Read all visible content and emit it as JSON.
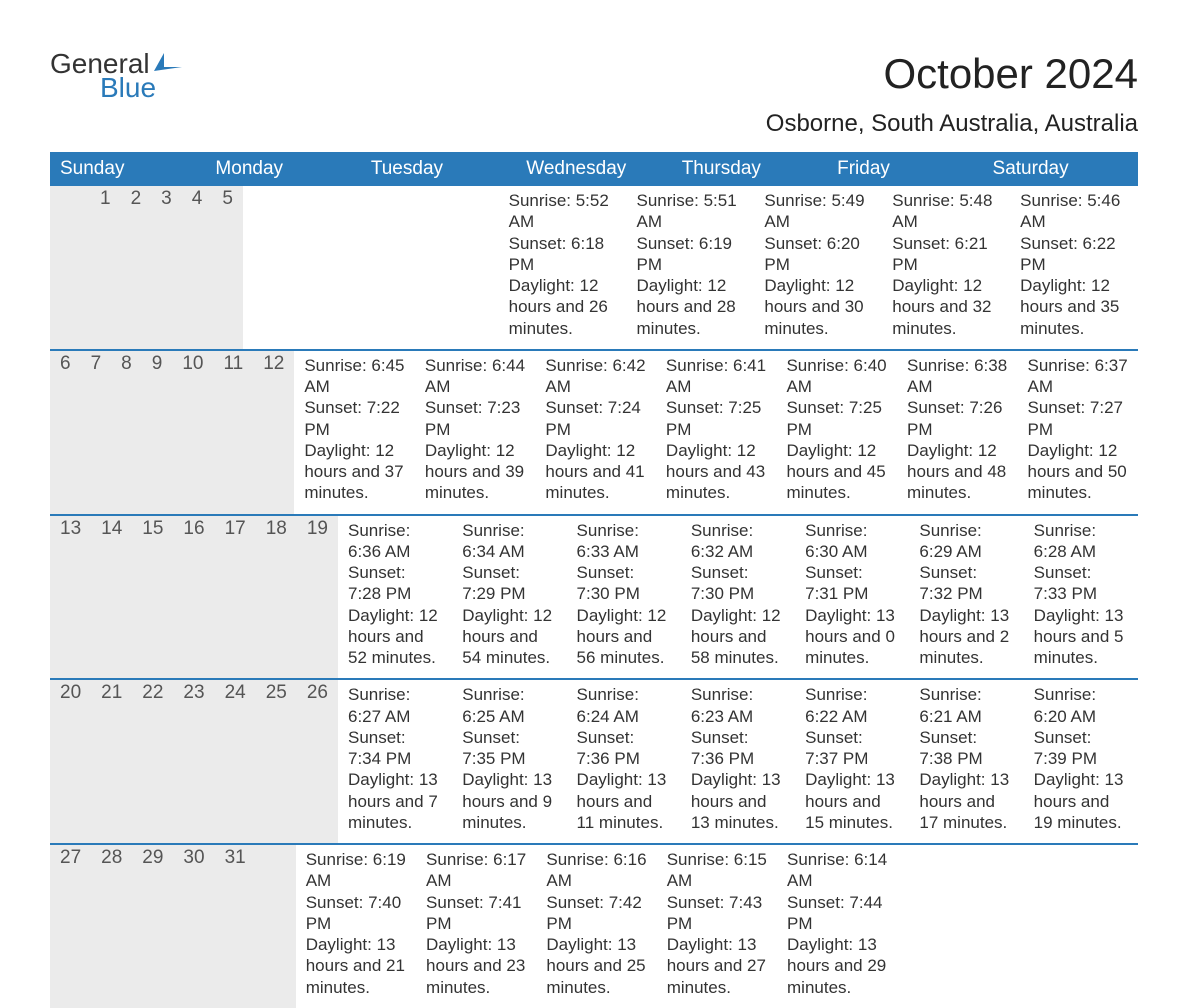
{
  "logo": {
    "line1": "General",
    "line2": "Blue",
    "icon_color": "#2a7ab9"
  },
  "title": "October 2024",
  "subtitle": "Osborne, South Australia, Australia",
  "colors": {
    "header_bg": "#2a7ab9",
    "header_text": "#ffffff",
    "daynum_bg": "#ebebeb",
    "text": "#333333",
    "row_divider": "#2a7ab9"
  },
  "weekdays": [
    "Sunday",
    "Monday",
    "Tuesday",
    "Wednesday",
    "Thursday",
    "Friday",
    "Saturday"
  ],
  "weeks": [
    [
      null,
      null,
      {
        "num": "1",
        "sunrise": "Sunrise: 5:52 AM",
        "sunset": "Sunset: 6:18 PM",
        "daylight": "Daylight: 12 hours and 26 minutes."
      },
      {
        "num": "2",
        "sunrise": "Sunrise: 5:51 AM",
        "sunset": "Sunset: 6:19 PM",
        "daylight": "Daylight: 12 hours and 28 minutes."
      },
      {
        "num": "3",
        "sunrise": "Sunrise: 5:49 AM",
        "sunset": "Sunset: 6:20 PM",
        "daylight": "Daylight: 12 hours and 30 minutes."
      },
      {
        "num": "4",
        "sunrise": "Sunrise: 5:48 AM",
        "sunset": "Sunset: 6:21 PM",
        "daylight": "Daylight: 12 hours and 32 minutes."
      },
      {
        "num": "5",
        "sunrise": "Sunrise: 5:46 AM",
        "sunset": "Sunset: 6:22 PM",
        "daylight": "Daylight: 12 hours and 35 minutes."
      }
    ],
    [
      {
        "num": "6",
        "sunrise": "Sunrise: 6:45 AM",
        "sunset": "Sunset: 7:22 PM",
        "daylight": "Daylight: 12 hours and 37 minutes."
      },
      {
        "num": "7",
        "sunrise": "Sunrise: 6:44 AM",
        "sunset": "Sunset: 7:23 PM",
        "daylight": "Daylight: 12 hours and 39 minutes."
      },
      {
        "num": "8",
        "sunrise": "Sunrise: 6:42 AM",
        "sunset": "Sunset: 7:24 PM",
        "daylight": "Daylight: 12 hours and 41 minutes."
      },
      {
        "num": "9",
        "sunrise": "Sunrise: 6:41 AM",
        "sunset": "Sunset: 7:25 PM",
        "daylight": "Daylight: 12 hours and 43 minutes."
      },
      {
        "num": "10",
        "sunrise": "Sunrise: 6:40 AM",
        "sunset": "Sunset: 7:25 PM",
        "daylight": "Daylight: 12 hours and 45 minutes."
      },
      {
        "num": "11",
        "sunrise": "Sunrise: 6:38 AM",
        "sunset": "Sunset: 7:26 PM",
        "daylight": "Daylight: 12 hours and 48 minutes."
      },
      {
        "num": "12",
        "sunrise": "Sunrise: 6:37 AM",
        "sunset": "Sunset: 7:27 PM",
        "daylight": "Daylight: 12 hours and 50 minutes."
      }
    ],
    [
      {
        "num": "13",
        "sunrise": "Sunrise: 6:36 AM",
        "sunset": "Sunset: 7:28 PM",
        "daylight": "Daylight: 12 hours and 52 minutes."
      },
      {
        "num": "14",
        "sunrise": "Sunrise: 6:34 AM",
        "sunset": "Sunset: 7:29 PM",
        "daylight": "Daylight: 12 hours and 54 minutes."
      },
      {
        "num": "15",
        "sunrise": "Sunrise: 6:33 AM",
        "sunset": "Sunset: 7:30 PM",
        "daylight": "Daylight: 12 hours and 56 minutes."
      },
      {
        "num": "16",
        "sunrise": "Sunrise: 6:32 AM",
        "sunset": "Sunset: 7:30 PM",
        "daylight": "Daylight: 12 hours and 58 minutes."
      },
      {
        "num": "17",
        "sunrise": "Sunrise: 6:30 AM",
        "sunset": "Sunset: 7:31 PM",
        "daylight": "Daylight: 13 hours and 0 minutes."
      },
      {
        "num": "18",
        "sunrise": "Sunrise: 6:29 AM",
        "sunset": "Sunset: 7:32 PM",
        "daylight": "Daylight: 13 hours and 2 minutes."
      },
      {
        "num": "19",
        "sunrise": "Sunrise: 6:28 AM",
        "sunset": "Sunset: 7:33 PM",
        "daylight": "Daylight: 13 hours and 5 minutes."
      }
    ],
    [
      {
        "num": "20",
        "sunrise": "Sunrise: 6:27 AM",
        "sunset": "Sunset: 7:34 PM",
        "daylight": "Daylight: 13 hours and 7 minutes."
      },
      {
        "num": "21",
        "sunrise": "Sunrise: 6:25 AM",
        "sunset": "Sunset: 7:35 PM",
        "daylight": "Daylight: 13 hours and 9 minutes."
      },
      {
        "num": "22",
        "sunrise": "Sunrise: 6:24 AM",
        "sunset": "Sunset: 7:36 PM",
        "daylight": "Daylight: 13 hours and 11 minutes."
      },
      {
        "num": "23",
        "sunrise": "Sunrise: 6:23 AM",
        "sunset": "Sunset: 7:36 PM",
        "daylight": "Daylight: 13 hours and 13 minutes."
      },
      {
        "num": "24",
        "sunrise": "Sunrise: 6:22 AM",
        "sunset": "Sunset: 7:37 PM",
        "daylight": "Daylight: 13 hours and 15 minutes."
      },
      {
        "num": "25",
        "sunrise": "Sunrise: 6:21 AM",
        "sunset": "Sunset: 7:38 PM",
        "daylight": "Daylight: 13 hours and 17 minutes."
      },
      {
        "num": "26",
        "sunrise": "Sunrise: 6:20 AM",
        "sunset": "Sunset: 7:39 PM",
        "daylight": "Daylight: 13 hours and 19 minutes."
      }
    ],
    [
      {
        "num": "27",
        "sunrise": "Sunrise: 6:19 AM",
        "sunset": "Sunset: 7:40 PM",
        "daylight": "Daylight: 13 hours and 21 minutes."
      },
      {
        "num": "28",
        "sunrise": "Sunrise: 6:17 AM",
        "sunset": "Sunset: 7:41 PM",
        "daylight": "Daylight: 13 hours and 23 minutes."
      },
      {
        "num": "29",
        "sunrise": "Sunrise: 6:16 AM",
        "sunset": "Sunset: 7:42 PM",
        "daylight": "Daylight: 13 hours and 25 minutes."
      },
      {
        "num": "30",
        "sunrise": "Sunrise: 6:15 AM",
        "sunset": "Sunset: 7:43 PM",
        "daylight": "Daylight: 13 hours and 27 minutes."
      },
      {
        "num": "31",
        "sunrise": "Sunrise: 6:14 AM",
        "sunset": "Sunset: 7:44 PM",
        "daylight": "Daylight: 13 hours and 29 minutes."
      },
      null,
      null
    ]
  ]
}
